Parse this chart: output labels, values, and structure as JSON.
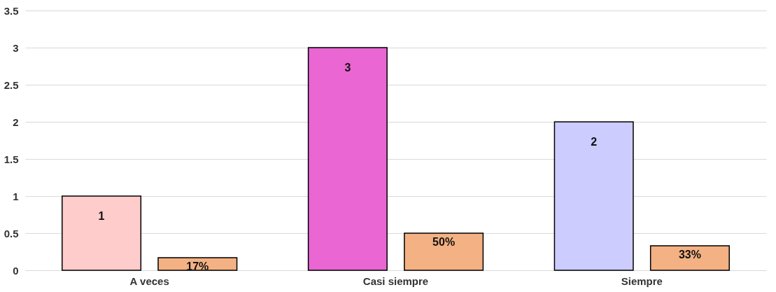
{
  "chart_data": {
    "type": "bar",
    "categories": [
      "A veces",
      "Casi siempre",
      "Siempre"
    ],
    "series": [
      {
        "colors": [
          "#ffcccc",
          "#e966d3",
          "#ccccff"
        ],
        "values": [
          1,
          3,
          2
        ],
        "value_labels": [
          "1",
          "3",
          "2"
        ]
      },
      {
        "color": "#f4b183",
        "values": [
          0.17,
          0.5,
          0.33
        ],
        "value_labels": [
          "17%",
          "50%",
          "33%"
        ]
      }
    ],
    "ylim": [
      0,
      3.5
    ],
    "yticks": [
      0,
      0.5,
      1,
      1.5,
      2,
      2.5,
      3,
      3.5
    ],
    "grid": "y"
  }
}
